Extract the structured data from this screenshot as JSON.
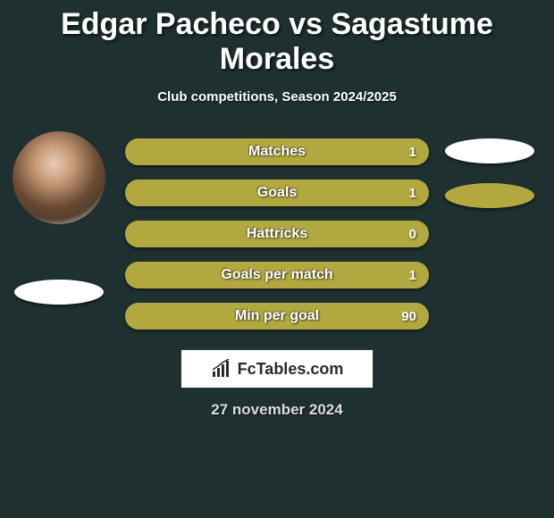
{
  "title": "Edgar Pacheco vs Sagastume Morales",
  "subtitle": "Club competitions, Season 2024/2025",
  "date": "27 november 2024",
  "logo_text": "FcTables.com",
  "colors": {
    "bg": "#1e3030",
    "bar_olive": "#b2a840",
    "bar_right_segment": "#b2a840",
    "bar_bg": "#b2a840",
    "ellipse_white": "#ffffff",
    "ellipse_olive": "#b2a840"
  },
  "left_player": {
    "name": "Edgar Pacheco",
    "has_photo": true
  },
  "right_player": {
    "name": "Sagastume Morales",
    "has_photo": false
  },
  "stats": [
    {
      "label": "Matches",
      "value": "1",
      "fill_pct": 100,
      "fill_color": "#b2a840",
      "bg_color": "#b2a840"
    },
    {
      "label": "Goals",
      "value": "1",
      "fill_pct": 100,
      "fill_color": "#b2a840",
      "bg_color": "#b2a840"
    },
    {
      "label": "Hattricks",
      "value": "0",
      "fill_pct": 100,
      "fill_color": "#b2a840",
      "bg_color": "#b2a840"
    },
    {
      "label": "Goals per match",
      "value": "1",
      "fill_pct": 100,
      "fill_color": "#b2a840",
      "bg_color": "#b2a840"
    },
    {
      "label": "Min per goal",
      "value": "90",
      "fill_pct": 100,
      "fill_color": "#b2a840",
      "bg_color": "#b2a840"
    }
  ],
  "right_ellipses": [
    {
      "color": "#ffffff"
    },
    {
      "color": "#b2a840"
    }
  ],
  "left_ellipses": [
    {
      "color": "#ffffff"
    }
  ]
}
